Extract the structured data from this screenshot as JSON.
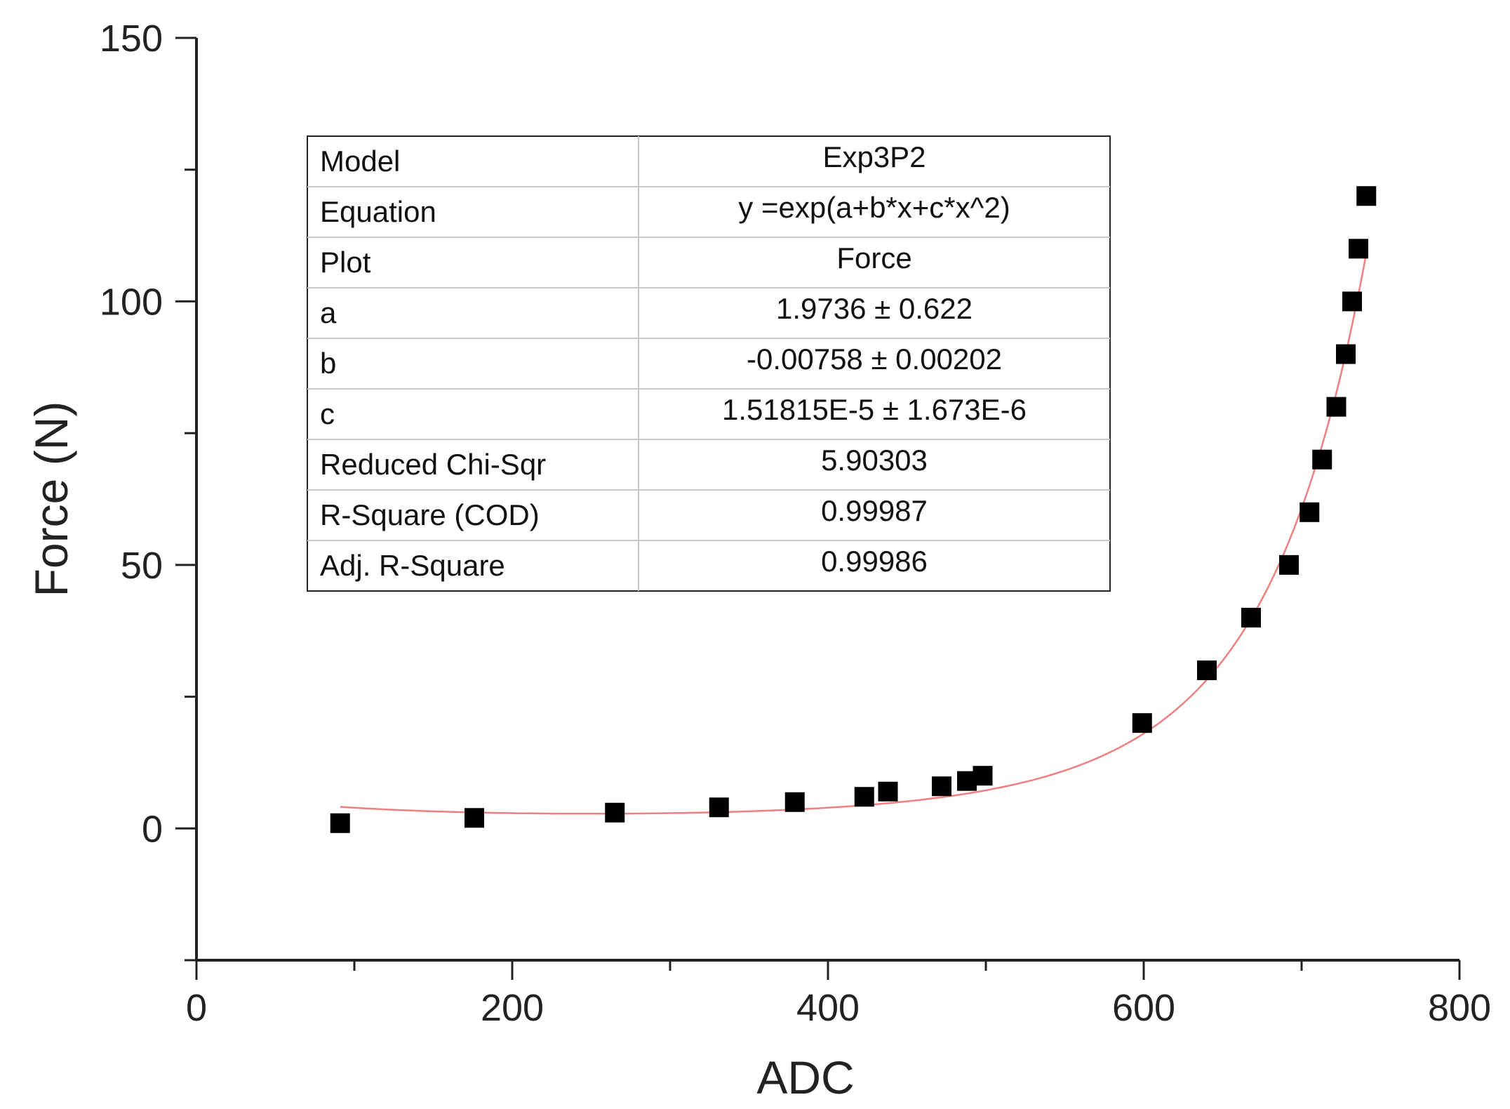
{
  "chart_data": {
    "type": "scatter",
    "xlabel": "ADC",
    "ylabel": "Force (N)",
    "xlim": [
      0,
      800
    ],
    "ylim": [
      -25,
      150
    ],
    "x_major_ticks": [
      0,
      200,
      400,
      600,
      800
    ],
    "x_minor_ticks": [
      100,
      300,
      500,
      700
    ],
    "y_major_ticks": [
      0,
      50,
      100,
      150
    ],
    "y_minor_ticks": [
      -25,
      25,
      75,
      125
    ],
    "grid": false,
    "marker_color": "#000000",
    "fit_color": "#f08080",
    "points": {
      "x": [
        91,
        176,
        265,
        331,
        379,
        423,
        438,
        472,
        488,
        498,
        599,
        640,
        668,
        692,
        705,
        713,
        722,
        728,
        732,
        736,
        741
      ],
      "y": [
        1,
        2,
        3,
        4,
        5,
        6,
        7,
        8,
        9,
        10,
        20,
        30,
        40,
        50,
        60,
        70,
        80,
        90,
        100,
        110,
        120
      ]
    },
    "fit": {
      "x_range": [
        91,
        741
      ],
      "a": 1.9736,
      "b": -0.00758,
      "c": 1.51815e-05
    },
    "fit_table": [
      {
        "label": "Model",
        "value": "Exp3P2"
      },
      {
        "label": "Equation",
        "value": "y =exp(a+b*x+c*x^2)"
      },
      {
        "label": "Plot",
        "value": "Force"
      },
      {
        "label": "a",
        "value": "1.9736 ± 0.622"
      },
      {
        "label": "b",
        "value": "-0.00758 ± 0.00202"
      },
      {
        "label": "c",
        "value": "1.51815E-5 ± 1.673E-6"
      },
      {
        "label": "Reduced Chi-Sqr",
        "value": "5.90303"
      },
      {
        "label": "R-Square (COD)",
        "value": "0.99987"
      },
      {
        "label": "Adj. R-Square",
        "value": "0.99986"
      }
    ]
  }
}
